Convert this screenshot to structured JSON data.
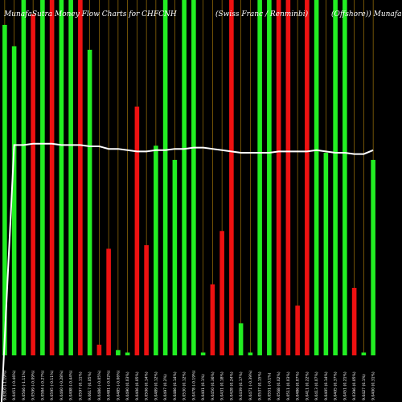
{
  "chart_data": {
    "type": "bar",
    "title": "MunafaSutra Money Flow Charts for CHFCNH",
    "subtitle_parts": [
      "(Swiss Franc / Renminbi)",
      "(Offshore)) Munafa"
    ],
    "colors": {
      "up": "#22ee22",
      "down": "#ee1111",
      "background": "#000000",
      "line": "#ffffff",
      "grid": "#b8860b"
    },
    "bars": [
      {
        "label": "9.0310 (-1.19%)",
        "value": 93,
        "direction": "up"
      },
      {
        "label": "9.0451 (-0.46%)",
        "value": 87,
        "direction": "up"
      },
      {
        "label": "9.0566 (-1.11%)",
        "value": 100,
        "direction": "up"
      },
      {
        "label": "9.0599 (-0.09%)",
        "value": 96,
        "direction": "down"
      },
      {
        "label": "9.0584 (-0.27%)",
        "value": 100,
        "direction": "up"
      },
      {
        "label": "9.0595 (-0.11%)",
        "value": 100,
        "direction": "down"
      },
      {
        "label": "9.0460 (-0.28%)",
        "value": 100,
        "direction": "up"
      },
      {
        "label": "9.0498 (-0.44%)",
        "value": 100,
        "direction": "up"
      },
      {
        "label": "9.0597 (0.11%)",
        "value": 100,
        "direction": "down"
      },
      {
        "label": "9.0617 (0.05%)",
        "value": 86,
        "direction": "up"
      },
      {
        "label": "9.0486 (-0.05%)",
        "value": 3,
        "direction": "down"
      },
      {
        "label": "9.0481 (-0.02%)",
        "value": 30,
        "direction": "down"
      },
      {
        "label": "9.0485 (-0.06%)",
        "value": 1.5,
        "direction": "up"
      },
      {
        "label": "9.0490 (0.03%)",
        "value": 0.8,
        "direction": "up"
      },
      {
        "label": "9.0406 (0.05%)",
        "value": 70,
        "direction": "down"
      },
      {
        "label": "9.0506 (0.14%)",
        "value": 31,
        "direction": "down"
      },
      {
        "label": "9.0489 (0.12%)",
        "value": 59,
        "direction": "up"
      },
      {
        "label": "9.0497 (0.2%)",
        "value": 100,
        "direction": "up"
      },
      {
        "label": "9.0486 (0.14%)",
        "value": 55,
        "direction": "up"
      },
      {
        "label": "9.0530 (0.12%)",
        "value": 100,
        "direction": "up"
      },
      {
        "label": "9.0478 (-0.19%)",
        "value": 100,
        "direction": "up"
      },
      {
        "label": "9.0401 (0.1%)",
        "value": 0.8,
        "direction": "up"
      },
      {
        "label": "9.0450 (0.36%)",
        "value": 20,
        "direction": "down"
      },
      {
        "label": "9.0431 (0.18%)",
        "value": 35,
        "direction": "down"
      },
      {
        "label": "9.0428 (0.24%)",
        "value": 100,
        "direction": "down"
      },
      {
        "label": "9.0439 (0.17%)",
        "value": 9,
        "direction": "up"
      },
      {
        "label": "9.0471 (-0.39%)",
        "value": 0.8,
        "direction": "up"
      },
      {
        "label": "9.0537 (0.15%)",
        "value": 100,
        "direction": "up"
      },
      {
        "label": "9.0551 (-0.1%)",
        "value": 100,
        "direction": "up"
      },
      {
        "label": "9.0568 (0.02%)",
        "value": 100,
        "direction": "down"
      },
      {
        "label": "9.0511 (0.03%)",
        "value": 100,
        "direction": "down"
      },
      {
        "label": "9.0486 (0.07%)",
        "value": 14,
        "direction": "down"
      },
      {
        "label": "9.0411 (0.22%)",
        "value": 100,
        "direction": "down"
      },
      {
        "label": "9.0413 (0.07%)",
        "value": 100,
        "direction": "up"
      },
      {
        "label": "9.0405 (0.14%)",
        "value": 57,
        "direction": "up"
      },
      {
        "label": "9.0405 (0.37%)",
        "value": 100,
        "direction": "up"
      },
      {
        "label": "9.0451 (0.21%)",
        "value": 100,
        "direction": "up"
      },
      {
        "label": "9.0396 (0.05%)",
        "value": 19,
        "direction": "down"
      },
      {
        "label": "9.0427 (0.1%)",
        "value": 0.8,
        "direction": "up"
      },
      {
        "label": "9.0400 (0.31%)",
        "value": 55,
        "direction": "up"
      }
    ],
    "price_line": [
      0,
      100,
      100,
      100.5,
      100.5,
      100.5,
      100,
      100,
      100,
      99.5,
      99.5,
      98.5,
      98.5,
      98,
      97.5,
      97.5,
      98,
      98,
      98.5,
      98.5,
      99,
      99,
      98.5,
      98,
      97.5,
      97,
      97,
      97,
      97,
      97.5,
      97.5,
      97.5,
      97.5,
      98,
      97.5,
      97,
      97,
      96.5,
      96.5,
      98
    ]
  }
}
